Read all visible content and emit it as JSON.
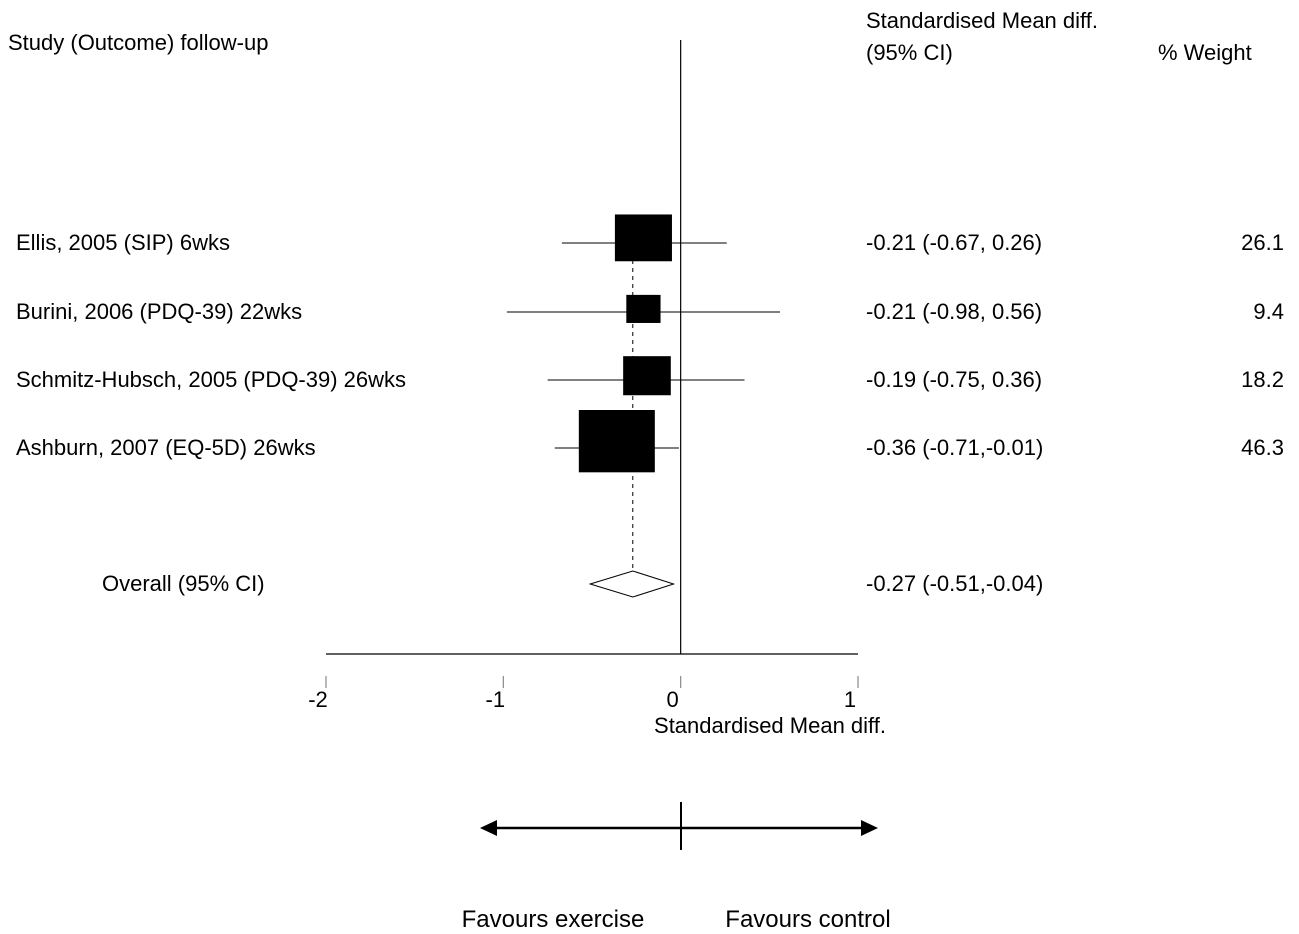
{
  "headers": {
    "study": "Study (Outcome) follow-up",
    "smd_line1": "Standardised Mean diff.",
    "smd_line2": "(95% CI)",
    "weight": "% Weight"
  },
  "chart_data": {
    "type": "forest",
    "xlabel": "Standardised Mean diff.",
    "xlim": [
      -2,
      1
    ],
    "ticks": [
      -2,
      -1,
      0,
      1
    ],
    "tick_labels": [
      "-2",
      "-1",
      "0",
      "1"
    ],
    "studies": [
      {
        "label": "Ellis, 2005 (SIP) 6wks",
        "smd": -0.21,
        "lower": -0.67,
        "upper": 0.26,
        "ci_text": "-0.21 (-0.67, 0.26)",
        "weight": 26.1,
        "weight_text": "26.1"
      },
      {
        "label": "Burini, 2006 (PDQ-39) 22wks",
        "smd": -0.21,
        "lower": -0.98,
        "upper": 0.56,
        "ci_text": "-0.21 (-0.98, 0.56)",
        "weight": 9.4,
        "weight_text": "9.4"
      },
      {
        "label": "Schmitz-Hubsch, 2005 (PDQ-39) 26wks",
        "smd": -0.19,
        "lower": -0.75,
        "upper": 0.36,
        "ci_text": "-0.19 (-0.75, 0.36)",
        "weight": 18.2,
        "weight_text": "18.2"
      },
      {
        "label": "Ashburn, 2007 (EQ-5D) 26wks",
        "smd": -0.36,
        "lower": -0.71,
        "upper": -0.01,
        "ci_text": "-0.36 (-0.71,-0.01)",
        "weight": 46.3,
        "weight_text": "46.3"
      }
    ],
    "overall": {
      "label": "Overall (95% CI)",
      "smd": -0.27,
      "lower": -0.51,
      "upper": -0.04,
      "ci_text": "-0.27 (-0.51,-0.04)"
    }
  },
  "favours": {
    "left": "Favours exercise",
    "right": "Favours control"
  }
}
